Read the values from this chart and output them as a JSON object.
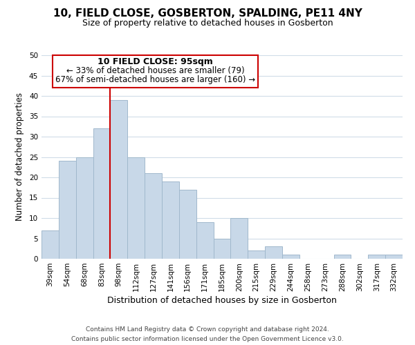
{
  "title": "10, FIELD CLOSE, GOSBERTON, SPALDING, PE11 4NY",
  "subtitle": "Size of property relative to detached houses in Gosberton",
  "xlabel": "Distribution of detached houses by size in Gosberton",
  "ylabel": "Number of detached properties",
  "categories": [
    "39sqm",
    "54sqm",
    "68sqm",
    "83sqm",
    "98sqm",
    "112sqm",
    "127sqm",
    "141sqm",
    "156sqm",
    "171sqm",
    "185sqm",
    "200sqm",
    "215sqm",
    "229sqm",
    "244sqm",
    "258sqm",
    "273sqm",
    "288sqm",
    "302sqm",
    "317sqm",
    "332sqm"
  ],
  "values": [
    7,
    24,
    25,
    32,
    39,
    25,
    21,
    19,
    17,
    9,
    5,
    10,
    2,
    3,
    1,
    0,
    0,
    1,
    0,
    1,
    1
  ],
  "bar_color": "#c8d8e8",
  "bar_edge_color": "#a0b8cc",
  "vline_color": "#cc0000",
  "ylim": [
    0,
    50
  ],
  "yticks": [
    0,
    5,
    10,
    15,
    20,
    25,
    30,
    35,
    40,
    45,
    50
  ],
  "annotation_title": "10 FIELD CLOSE: 95sqm",
  "annotation_line1": "← 33% of detached houses are smaller (79)",
  "annotation_line2": "67% of semi-detached houses are larger (160) →",
  "annotation_box_color": "#ffffff",
  "annotation_box_edge": "#cc0000",
  "footer_line1": "Contains HM Land Registry data © Crown copyright and database right 2024.",
  "footer_line2": "Contains public sector information licensed under the Open Government Licence v3.0.",
  "title_fontsize": 11,
  "subtitle_fontsize": 9,
  "xlabel_fontsize": 9,
  "ylabel_fontsize": 8.5,
  "tick_fontsize": 7.5,
  "annotation_title_fontsize": 9,
  "annotation_text_fontsize": 8.5,
  "footer_fontsize": 6.5,
  "background_color": "#ffffff",
  "grid_color": "#d0dce8"
}
